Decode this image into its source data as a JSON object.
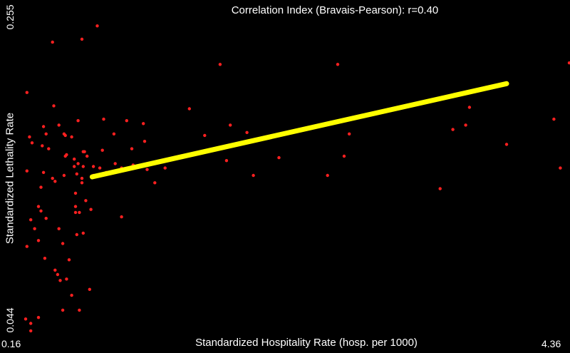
{
  "chart_data": {
    "type": "scatter",
    "title": "Correlation Index (Bravais-Pearson): r=0.40",
    "xlabel": "Standardized Hospitality Rate (hosp. per 1000)",
    "ylabel": "Standardized Lethality Rate",
    "xlim": [
      0.16,
      4.36
    ],
    "ylim": [
      0.044,
      0.255
    ],
    "x_tick_labels": [
      "0.16",
      "4.36"
    ],
    "y_tick_labels": [
      "0.044",
      "0.255"
    ],
    "grid": false,
    "legend": "none",
    "colors": {
      "background": "#000000",
      "points": "#ff2020",
      "trendline": "#ffff00",
      "text": "#ffffff"
    },
    "trendline": {
      "x": [
        0.68,
        3.92
      ],
      "y": [
        0.149,
        0.212
      ]
    },
    "points": {
      "x": [
        0.16,
        0.17,
        0.17,
        0.17,
        0.19,
        0.2,
        0.2,
        0.2,
        0.21,
        0.23,
        0.26,
        0.26,
        0.26,
        0.28,
        0.28,
        0.29,
        0.3,
        0.3,
        0.31,
        0.32,
        0.32,
        0.34,
        0.37,
        0.37,
        0.38,
        0.39,
        0.39,
        0.41,
        0.42,
        0.42,
        0.43,
        0.45,
        0.45,
        0.46,
        0.46,
        0.47,
        0.47,
        0.48,
        0.48,
        0.5,
        0.52,
        0.52,
        0.54,
        0.54,
        0.55,
        0.55,
        0.55,
        0.56,
        0.56,
        0.57,
        0.57,
        0.58,
        0.58,
        0.6,
        0.6,
        0.6,
        0.61,
        0.61,
        0.61,
        0.62,
        0.63,
        0.64,
        0.66,
        0.67,
        0.69,
        0.69,
        0.72,
        0.74,
        0.76,
        0.77,
        0.79,
        0.85,
        0.86,
        0.91,
        0.91,
        0.95,
        0.99,
        1.0,
        1.08,
        1.09,
        1.11,
        1.17,
        1.25,
        1.44,
        1.56,
        1.68,
        1.73,
        1.76,
        1.89,
        1.94,
        2.14,
        2.52,
        2.6,
        2.65,
        2.69,
        3.4,
        3.5,
        3.6,
        3.63,
        3.92,
        4.29,
        4.34,
        4.41
      ],
      "y": [
        0.053,
        0.102,
        0.206,
        0.153,
        0.176,
        0.05,
        0.045,
        0.12,
        0.172,
        0.114,
        0.054,
        0.106,
        0.129,
        0.126,
        0.142,
        0.17,
        0.183,
        0.152,
        0.094,
        0.178,
        0.121,
        0.168,
        0.148,
        0.24,
        0.197,
        0.086,
        0.146,
        0.083,
        0.114,
        0.184,
        0.079,
        0.104,
        0.059,
        0.178,
        0.15,
        0.177,
        0.163,
        0.164,
        0.08,
        0.093,
        0.176,
        0.069,
        0.156,
        0.161,
        0.129,
        0.138,
        0.125,
        0.151,
        0.11,
        0.158,
        0.187,
        0.059,
        0.125,
        0.242,
        0.145,
        0.148,
        0.111,
        0.166,
        0.156,
        0.166,
        0.133,
        0.163,
        0.073,
        0.127,
        0.15,
        0.156,
        0.251,
        0.155,
        0.167,
        0.188,
        0.152,
        0.178,
        0.158,
        0.155,
        0.122,
        0.187,
        0.168,
        0.157,
        0.185,
        0.173,
        0.154,
        0.145,
        0.155,
        0.195,
        0.177,
        0.225,
        0.16,
        0.184,
        0.179,
        0.15,
        0.162,
        0.15,
        0.225,
        0.163,
        0.178,
        0.141,
        0.181,
        0.184,
        0.196,
        0.171,
        0.188,
        0.155,
        0.226
      ]
    }
  }
}
